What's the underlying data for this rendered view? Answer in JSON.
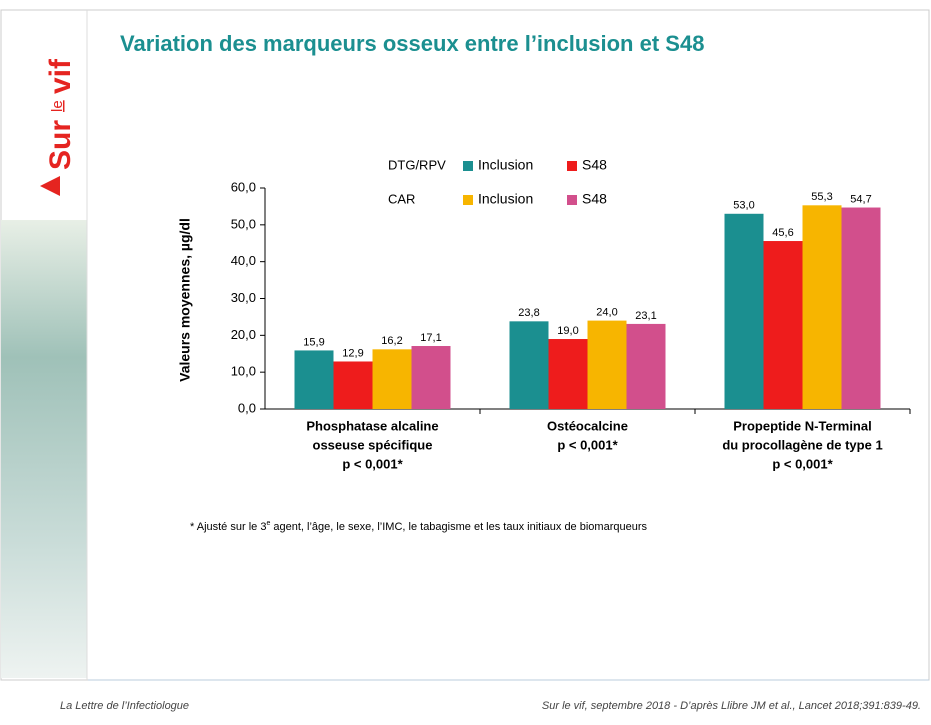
{
  "brand": [
    "Sur",
    "le",
    "vif"
  ],
  "chart_data": {
    "type": "bar",
    "title": "Variation des marqueurs osseux entre l’inclusion et S48",
    "y_label": "Valeurs moyennes, µg/dl",
    "categories": [
      [
        "Phosphatase alcaline",
        "osseuse spécifique",
        "p < 0,001*"
      ],
      [
        "Ostéocalcine",
        "p < 0,001*"
      ],
      [
        "Propeptide N-Terminal",
        "du procollagène de type 1",
        "p < 0,001*"
      ]
    ],
    "legend_groups": [
      "DTG/RPV",
      "CAR"
    ],
    "series": [
      {
        "name": "Inclusion",
        "color": "#1b8f90",
        "values": [
          15.9,
          23.8,
          53.0
        ],
        "value_labels": [
          "15,9",
          "23,8",
          "53,0"
        ]
      },
      {
        "name": "S48",
        "color": "#ee1c1c",
        "values": [
          12.9,
          19.0,
          45.6
        ],
        "value_labels": [
          "12,9",
          "19,0",
          "45,6"
        ]
      },
      {
        "name": "Inclusion",
        "color": "#f7b500",
        "values": [
          16.2,
          24.0,
          55.3
        ],
        "value_labels": [
          "16,2",
          "24,0",
          "55,3"
        ]
      },
      {
        "name": "S48",
        "color": "#d24f8c",
        "values": [
          17.1,
          23.1,
          54.7
        ],
        "value_labels": [
          "17,1",
          "23,1",
          "54,7"
        ]
      }
    ],
    "ylim": [
      0,
      60
    ],
    "yticks": [
      {
        "value": 0,
        "label": "0,0"
      },
      {
        "value": 10,
        "label": "10,0"
      },
      {
        "value": 20,
        "label": "20,0"
      },
      {
        "value": 30,
        "label": "30,0"
      },
      {
        "value": 40,
        "label": "40,0"
      },
      {
        "value": 50,
        "label": "50,0"
      },
      {
        "value": 60,
        "label": "60,0"
      }
    ],
    "footnote": [
      "* Ajusté sur le 3",
      "e",
      " agent, l’âge, le sexe, l’IMC, le tabagisme et les taux initiaux de biomarqueurs"
    ]
  },
  "footer": {
    "left": "La Lettre de l’Infectiologue",
    "right": "Sur le vif, septembre 2018 - D’après Llibre JM et al., Lancet 2018;391:839-49."
  }
}
